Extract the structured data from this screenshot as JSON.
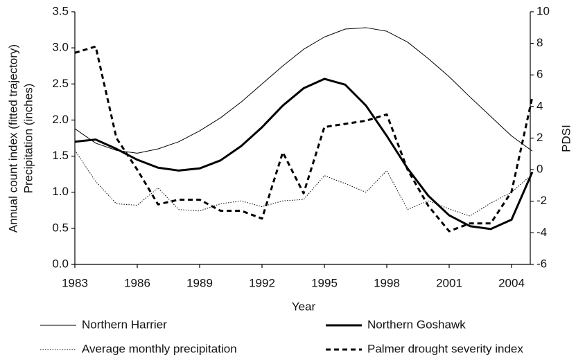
{
  "chart_data": {
    "type": "line",
    "xlabel": "Year",
    "ylabel": [
      "Annual count index (fitted trajectory)",
      "Precipitation (inches)"
    ],
    "y2label": "PDSI",
    "x": [
      1983,
      1984,
      1985,
      1986,
      1987,
      1988,
      1989,
      1990,
      1991,
      1992,
      1993,
      1994,
      1995,
      1996,
      1997,
      1998,
      1999,
      2000,
      2001,
      2002,
      2003,
      2004,
      2005
    ],
    "xlim": [
      1983,
      2005
    ],
    "xticks": [
      1983,
      1986,
      1989,
      1992,
      1995,
      1998,
      2001,
      2004
    ],
    "ylim": [
      0,
      3.5
    ],
    "yticks": [
      {
        "value": 0,
        "label": "0.0"
      },
      0.5,
      {
        "value": 1,
        "label": "1.0"
      },
      1.5,
      {
        "value": 2,
        "label": "2.0"
      },
      2.5,
      {
        "value": 3,
        "label": "3.0"
      },
      3.5
    ],
    "y2lim": [
      -6,
      10
    ],
    "y2ticks": [
      -6,
      -4,
      -2,
      0,
      2,
      4,
      6,
      8,
      10
    ],
    "series": [
      {
        "name": "Northern Harrier",
        "color": "#000000",
        "width": 1,
        "dash": "solid",
        "values": [
          1.88,
          1.68,
          1.58,
          1.54,
          1.6,
          1.7,
          1.85,
          2.03,
          2.25,
          2.5,
          2.75,
          2.98,
          3.15,
          3.26,
          3.28,
          3.23,
          3.08,
          2.85,
          2.6,
          2.32,
          2.05,
          1.78,
          1.57
        ]
      },
      {
        "name": "Northern Goshawk",
        "color": "#000000",
        "width": 3,
        "dash": "solid",
        "values": [
          1.7,
          1.73,
          1.6,
          1.45,
          1.34,
          1.3,
          1.33,
          1.44,
          1.64,
          1.9,
          2.2,
          2.44,
          2.57,
          2.49,
          2.2,
          1.78,
          1.33,
          0.95,
          0.68,
          0.53,
          0.49,
          0.62,
          1.28
        ]
      },
      {
        "name": "Average monthly precipitation",
        "color": "#000000",
        "width": 1,
        "dash": "dotted",
        "values": [
          1.58,
          1.15,
          0.84,
          0.82,
          1.06,
          0.76,
          0.74,
          0.84,
          0.88,
          0.8,
          0.88,
          0.9,
          1.23,
          1.12,
          1.0,
          1.3,
          0.76,
          0.88,
          0.77,
          0.67,
          0.85,
          1.0,
          1.25
        ]
      },
      {
        "name": "Palmer drought severity index",
        "color": "#000000",
        "width": 3,
        "dash": "dashed",
        "axis": "y2",
        "values": [
          7.4,
          7.8,
          2,
          0,
          -2.2,
          -1.9,
          -1.9,
          -2.6,
          -2.6,
          -3.1,
          1.1,
          -1.5,
          2.7,
          2.9,
          3.1,
          3.5,
          0,
          -2.3,
          -3.9,
          -3.4,
          -3.4,
          -1.4,
          4.6
        ]
      }
    ]
  }
}
